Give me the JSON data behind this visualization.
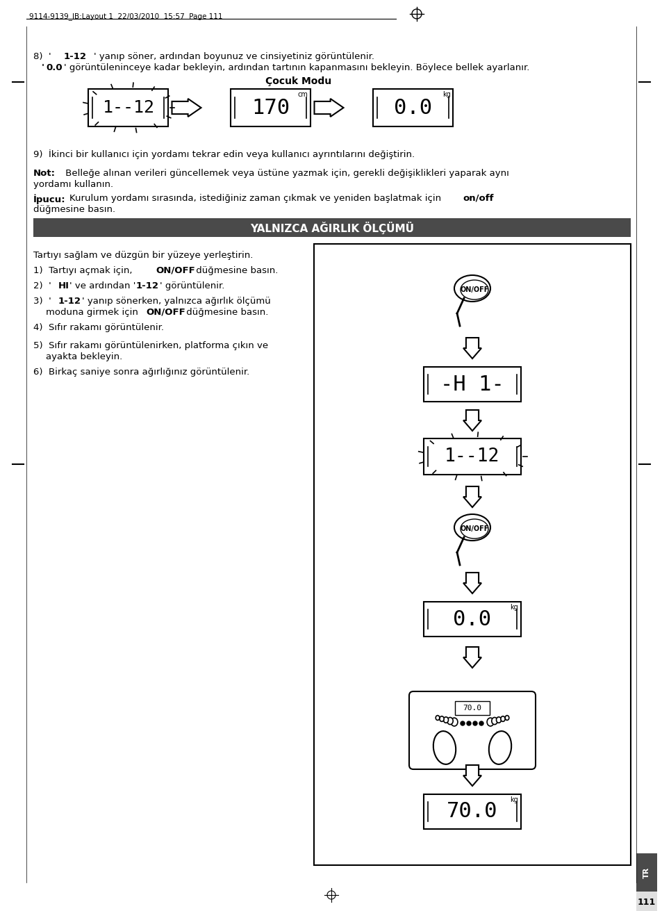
{
  "page_header": "9114-9139_IB:Layout 1  22/03/2010  15:57  Page 111",
  "page_number": "111",
  "bg_color": "#ffffff",
  "text_color": "#000000",
  "section_bg": "#4a4a4a",
  "section_text_color": "#ffffff",
  "section_title": "YALNIZCA AĞIRLIK ÖLÇÜMÜ",
  "cocuk_modu_label": "Çocuk Modu"
}
